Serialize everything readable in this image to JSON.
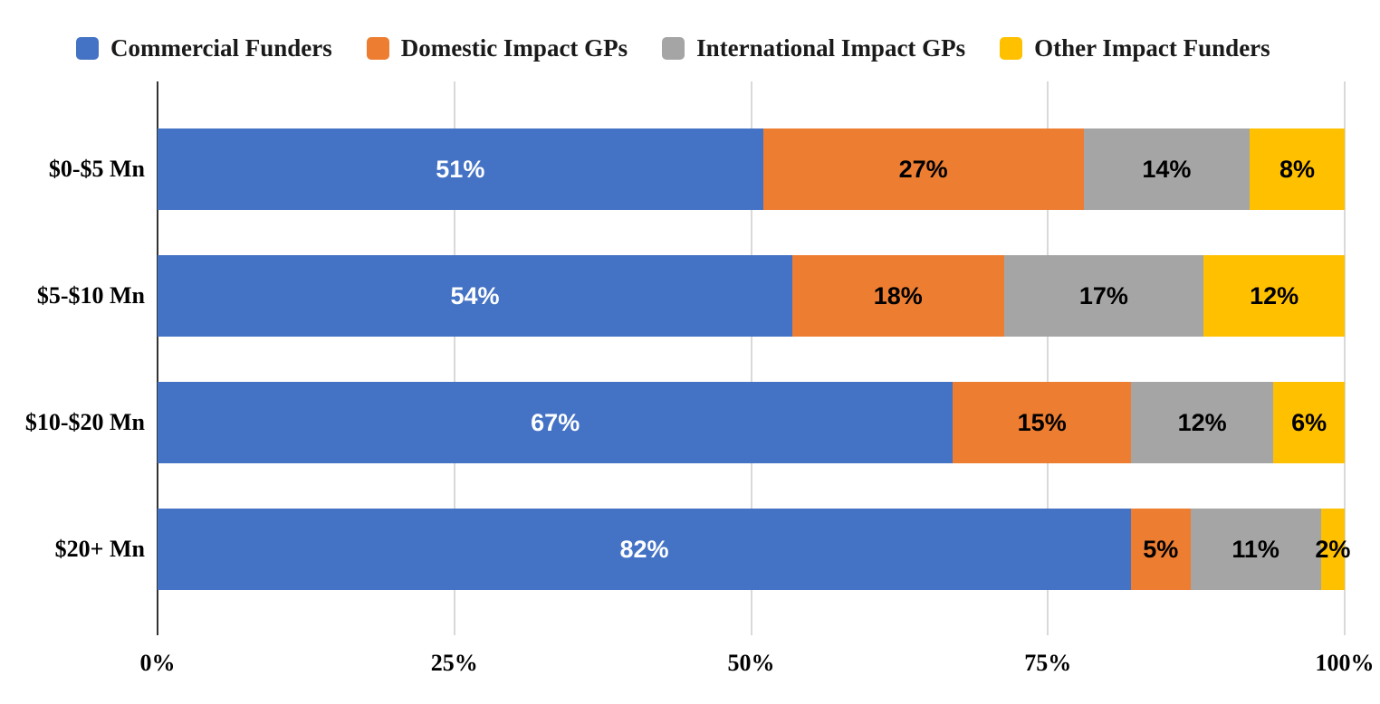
{
  "chart_data": {
    "type": "bar",
    "stacked": true,
    "orientation": "horizontal",
    "title": "",
    "legend_position": "top",
    "background": "#FFFFFF",
    "categories": [
      "$0-$5 Mn",
      "$5-$10 Mn",
      "$10-$20 Mn",
      "$20+ Mn"
    ],
    "series": [
      {
        "name": "Commercial Funders",
        "color": "#4472C4",
        "label_color": "#FFFFFF",
        "values": [
          51,
          54,
          67,
          82
        ],
        "labels": [
          "51%",
          "54%",
          "67%",
          "82%"
        ]
      },
      {
        "name": "Domestic Impact GPs",
        "color": "#ED7D31",
        "label_color": "#000000",
        "values": [
          27,
          18,
          15,
          5
        ],
        "labels": [
          "27%",
          "18%",
          "15%",
          "5%"
        ]
      },
      {
        "name": "International Impact GPs",
        "color": "#A5A5A5",
        "label_color": "#000000",
        "values": [
          14,
          17,
          12,
          11
        ],
        "labels": [
          "14%",
          "17%",
          "12%",
          "11%"
        ]
      },
      {
        "name": "Other Impact Funders",
        "color": "#FFC000",
        "label_color": "#000000",
        "values": [
          8,
          12,
          6,
          2
        ],
        "labels": [
          "8%",
          "12%",
          "6%",
          "2%"
        ]
      }
    ],
    "x_axis": {
      "min": 0,
      "max": 100,
      "ticks": [
        {
          "value": 0,
          "label": "0%"
        },
        {
          "value": 25,
          "label": "25%"
        },
        {
          "value": 50,
          "label": "50%"
        },
        {
          "value": 75,
          "label": "75%"
        },
        {
          "value": 100,
          "label": "100%"
        }
      ]
    },
    "grid": {
      "vertical": true,
      "line_color": "#D9D9D9",
      "zero_line_color": "#333333"
    }
  }
}
